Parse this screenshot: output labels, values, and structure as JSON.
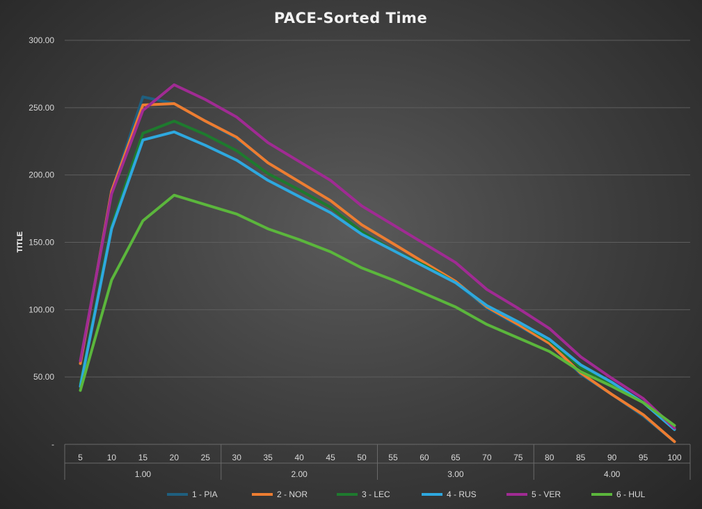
{
  "chart_data": {
    "type": "line",
    "title": "PACE-Sorted Time",
    "ylabel": "TITLE",
    "xlabel": "",
    "ylim": [
      0,
      300
    ],
    "y_ticks": [
      {
        "value": 0,
        "label": "-"
      },
      {
        "value": 50,
        "label": "50.00"
      },
      {
        "value": 100,
        "label": "100.00"
      },
      {
        "value": 150,
        "label": "150.00"
      },
      {
        "value": 200,
        "label": "200.00"
      },
      {
        "value": 250,
        "label": "250.00"
      },
      {
        "value": 300,
        "label": "300.00"
      }
    ],
    "categories": [
      "5",
      "10",
      "15",
      "20",
      "25",
      "30",
      "35",
      "40",
      "45",
      "50",
      "55",
      "60",
      "65",
      "70",
      "75",
      "80",
      "85",
      "90",
      "95",
      "100"
    ],
    "groups": [
      {
        "label": "1.00",
        "count": 5
      },
      {
        "label": "2.00",
        "count": 5
      },
      {
        "label": "3.00",
        "count": 5
      },
      {
        "label": "4.00",
        "count": 5
      }
    ],
    "grid": true,
    "legend_position": "bottom",
    "series": [
      {
        "name": "1 - PIA",
        "color": "#1f5f7f",
        "values": [
          60,
          188,
          258,
          253,
          240,
          227,
          209,
          195,
          181,
          163,
          149,
          135,
          120,
          101,
          88,
          75,
          52,
          37,
          21,
          2
        ]
      },
      {
        "name": "2 - NOR",
        "color": "#ed7d31",
        "values": [
          60,
          188,
          252,
          253,
          240,
          228,
          209,
          195,
          181,
          163,
          149,
          135,
          121,
          102,
          89,
          75,
          53,
          37,
          22,
          2
        ]
      },
      {
        "name": "3 - LEC",
        "color": "#1e7a2e",
        "values": [
          45,
          162,
          231,
          240,
          230,
          218,
          201,
          189,
          176,
          158,
          144,
          133,
          120,
          103,
          91,
          77,
          57,
          45,
          31,
          12
        ]
      },
      {
        "name": "4 - RUS",
        "color": "#2ea8df",
        "values": [
          43,
          160,
          226,
          232,
          222,
          211,
          196,
          184,
          172,
          156,
          144,
          132,
          120,
          103,
          91,
          78,
          59,
          46,
          31,
          11
        ]
      },
      {
        "name": "5 - VER",
        "color": "#a02b93",
        "values": [
          62,
          186,
          248,
          267,
          256,
          243,
          224,
          210,
          196,
          177,
          163,
          149,
          135,
          115,
          101,
          86,
          65,
          49,
          34,
          12
        ]
      },
      {
        "name": "6 - HUL",
        "color": "#5bb63c",
        "values": [
          40,
          122,
          166,
          185,
          178,
          171,
          160,
          152,
          143,
          131,
          122,
          112,
          102,
          89,
          79,
          69,
          54,
          43,
          31,
          14
        ]
      }
    ]
  }
}
